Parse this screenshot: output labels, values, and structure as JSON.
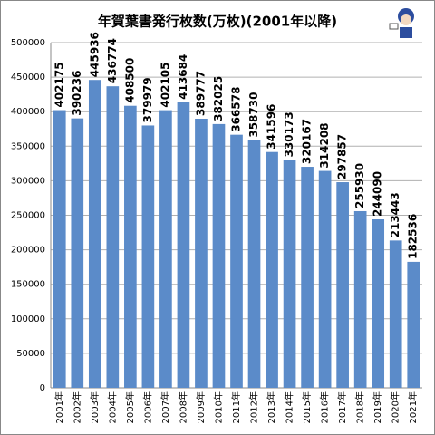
{
  "chart_data": {
    "type": "bar",
    "title": "年賀葉書発行枚数(万枚)(2001年以降)",
    "categories": [
      "2001年",
      "2002年",
      "2003年",
      "2004年",
      "2005年",
      "2006年",
      "2007年",
      "2008年",
      "2009年",
      "2010年",
      "2011年",
      "2012年",
      "2013年",
      "2014年",
      "2015年",
      "2016年",
      "2017年",
      "2018年",
      "2019年",
      "2020年",
      "2021年"
    ],
    "values": [
      402175,
      390236,
      445936,
      436774,
      408500,
      379979,
      402105,
      413684,
      389777,
      382025,
      366578,
      358730,
      341596,
      330173,
      320167,
      314208,
      297857,
      255930,
      244090,
      213443,
      182536
    ],
    "color": "#5b8bc9",
    "ylim": [
      0,
      500000
    ],
    "yticks": [
      0,
      50000,
      100000,
      150000,
      200000,
      250000,
      300000,
      350000,
      400000,
      450000,
      500000
    ],
    "grid": true
  }
}
